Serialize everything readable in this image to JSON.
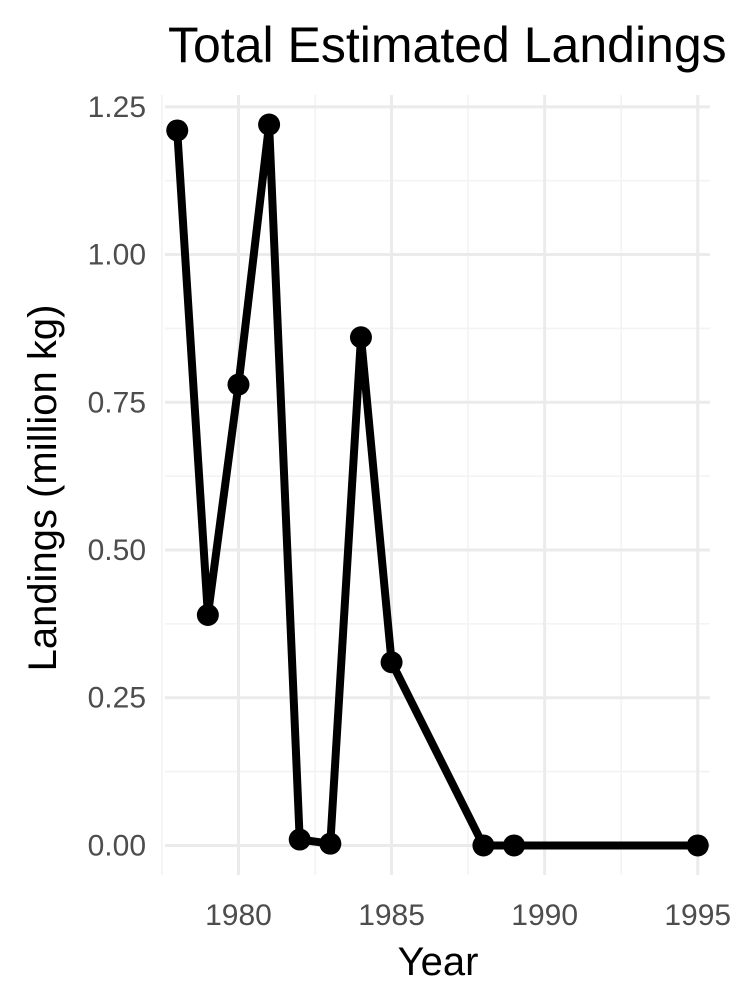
{
  "chart_data": {
    "type": "line",
    "title": "Total Estimated Landings",
    "xlabel": "Year",
    "ylabel": "Landings (million kg)",
    "xlim": [
      1977.6,
      1995.4
    ],
    "ylim": [
      -0.05,
      1.27
    ],
    "x_ticks": [
      1980,
      1985,
      1990,
      1995
    ],
    "x_minor_ticks": [
      1977.5,
      1982.5,
      1987.5,
      1992.5
    ],
    "y_ticks": [
      0.0,
      0.25,
      0.5,
      0.75,
      1.0,
      1.25
    ],
    "y_tick_labels": [
      "0.00",
      "0.25",
      "0.50",
      "0.75",
      "1.00",
      "1.25"
    ],
    "y_minor_ticks": [
      0.125,
      0.375,
      0.625,
      0.875,
      1.125
    ],
    "x_tick_labels": [
      "1980",
      "1985",
      "1990",
      "1995"
    ],
    "grid": true,
    "legend": "none",
    "series": [
      {
        "color": "#000000",
        "x": [
          1978,
          1979,
          1980,
          1981,
          1982,
          1983,
          1984,
          1985,
          1988,
          1989,
          1995
        ],
        "y": [
          1.21,
          0.39,
          0.78,
          1.22,
          0.01,
          0.003,
          0.86,
          0.31,
          0.0,
          0.0,
          0.0
        ]
      }
    ]
  }
}
